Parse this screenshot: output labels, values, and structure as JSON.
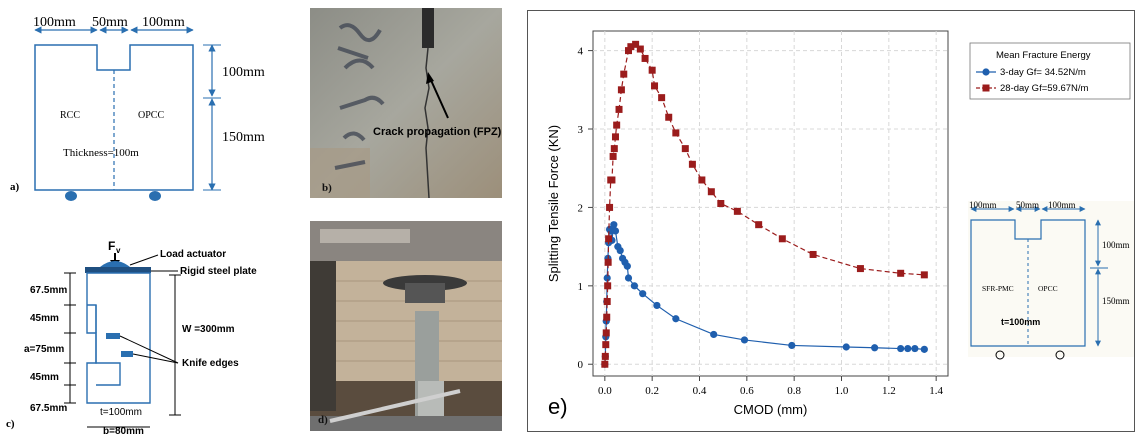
{
  "panel_a": {
    "dim_top": [
      "100mm",
      "50mm",
      "100mm"
    ],
    "dim_right": [
      "100mm",
      "150mm"
    ],
    "label_left": "RCC",
    "label_right": "OPCC",
    "thickness": "Thickness=100m",
    "letter": "a)"
  },
  "panel_b": {
    "crack_label": "Crack propagation (FPZ)",
    "letter": "b)"
  },
  "panel_c": {
    "load_symbol": "F",
    "load_subscript": "v",
    "load_actuator": "Load actuator",
    "rigid_plate": "Rigid steel plate",
    "dims_left": [
      "67.5mm",
      "45mm",
      "a=75mm",
      "45mm",
      "67.5mm"
    ],
    "height": "W =300mm",
    "knife_edges": "Knife edges",
    "thickness": "t=100mm",
    "width": "b=80mm",
    "letter": "c)"
  },
  "panel_d": {
    "letter": "d)"
  },
  "panel_e": {
    "letter": "e)",
    "inset": {
      "dim_top": [
        "100mm",
        "50mm",
        "100mm"
      ],
      "dim_right": [
        "100mm",
        "150mm"
      ],
      "label_left": "SFR-PMC",
      "label_right": "OPCC",
      "thickness": "t=100mm"
    }
  },
  "chart_data": {
    "type": "line",
    "xlabel": "CMOD (mm)",
    "ylabel": "Splitting Tensile Force (KN)",
    "xlim": [
      -0.05,
      1.45
    ],
    "ylim": [
      -0.15,
      4.25
    ],
    "xticks": [
      0.0,
      0.2,
      0.4,
      0.6,
      0.8,
      1.0,
      1.2,
      1.4
    ],
    "yticks": [
      0,
      1,
      2,
      3,
      4
    ],
    "grid": true,
    "legend_title": "Mean Fracture Energy",
    "legend_position": "top-right",
    "series": [
      {
        "name": "3-day Gf= 34.52N/m",
        "color": "#1f5fae",
        "marker": "circle",
        "line": "solid",
        "x": [
          0.0,
          0.002,
          0.004,
          0.006,
          0.008,
          0.01,
          0.013,
          0.016,
          0.02,
          0.025,
          0.03,
          0.038,
          0.045,
          0.055,
          0.065,
          0.075,
          0.085,
          0.095,
          0.1,
          0.125,
          0.16,
          0.22,
          0.3,
          0.46,
          0.59,
          0.79,
          1.02,
          1.14,
          1.25,
          1.28,
          1.31,
          1.35
        ],
        "y": [
          0.0,
          0.1,
          0.35,
          0.55,
          0.8,
          1.1,
          1.35,
          1.55,
          1.72,
          1.7,
          1.58,
          1.78,
          1.7,
          1.5,
          1.45,
          1.35,
          1.3,
          1.25,
          1.1,
          1.0,
          0.9,
          0.75,
          0.58,
          0.38,
          0.31,
          0.24,
          0.22,
          0.21,
          0.2,
          0.2,
          0.2,
          0.19
        ]
      },
      {
        "name": "28-day Gf=59.67N/m",
        "color": "#9b1c1c",
        "marker": "square",
        "line": "dashed",
        "x": [
          0.0,
          0.002,
          0.004,
          0.006,
          0.008,
          0.01,
          0.012,
          0.014,
          0.016,
          0.02,
          0.025,
          0.03,
          0.035,
          0.04,
          0.045,
          0.05,
          0.06,
          0.07,
          0.08,
          0.1,
          0.11,
          0.13,
          0.15,
          0.17,
          0.2,
          0.21,
          0.24,
          0.27,
          0.3,
          0.34,
          0.37,
          0.41,
          0.45,
          0.49,
          0.56,
          0.65,
          0.75,
          0.88,
          1.08,
          1.25,
          1.35
        ],
        "y": [
          0.0,
          0.1,
          0.25,
          0.4,
          0.6,
          0.8,
          1.0,
          1.3,
          1.6,
          2.0,
          2.35,
          2.35,
          2.65,
          2.75,
          2.9,
          3.05,
          3.25,
          3.5,
          3.7,
          4.0,
          4.05,
          4.08,
          4.02,
          3.9,
          3.75,
          3.55,
          3.4,
          3.15,
          2.95,
          2.75,
          2.55,
          2.35,
          2.2,
          2.05,
          1.95,
          1.78,
          1.6,
          1.4,
          1.22,
          1.16,
          1.14
        ]
      }
    ]
  }
}
